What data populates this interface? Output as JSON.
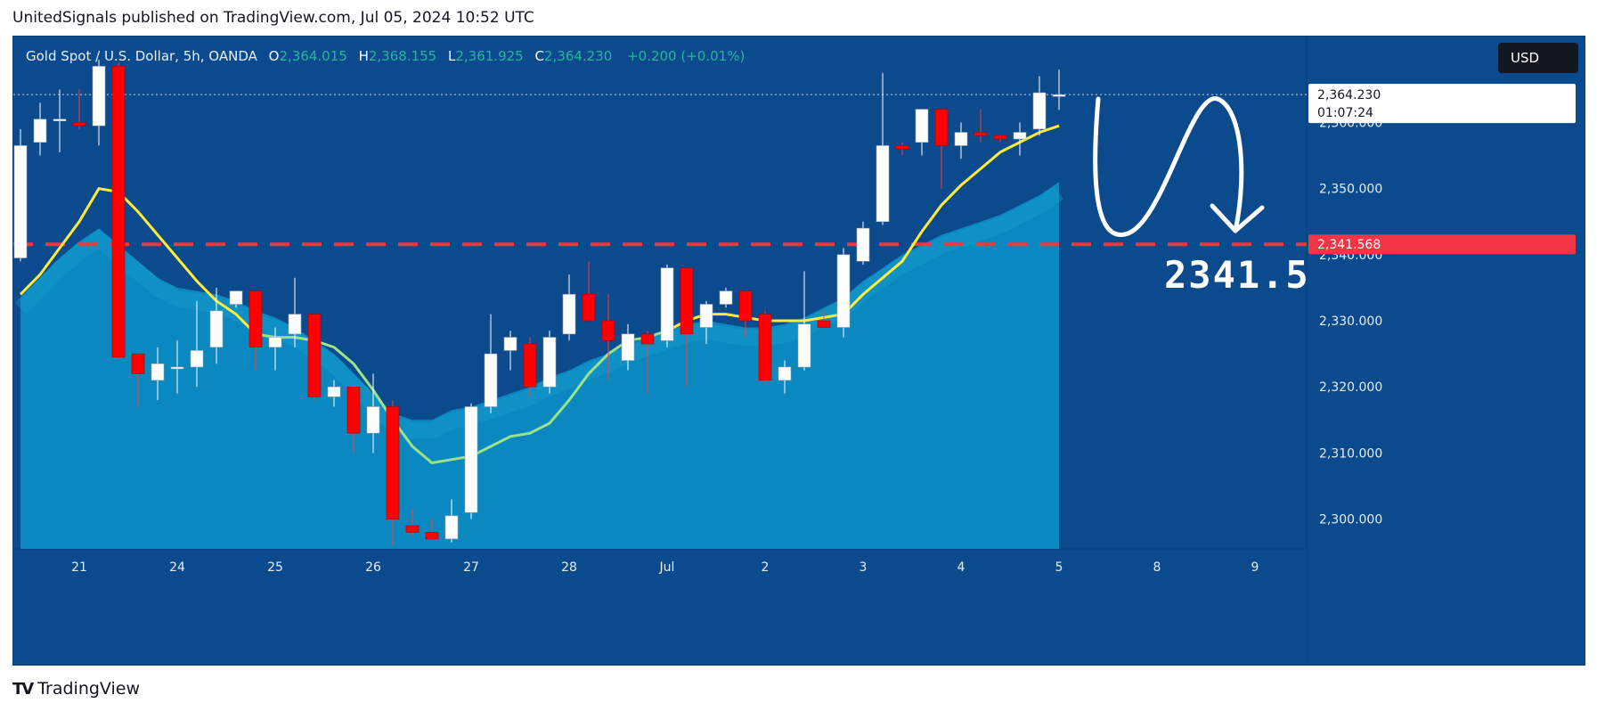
{
  "header": {
    "publisher_line": "UnitedSignals published on TradingView.com, Jul 05, 2024 10:52 UTC"
  },
  "legend": {
    "symbol": "Gold Spot / U.S. Dollar, 5h, OANDA",
    "o_label": "O",
    "o_value": "2,364.015",
    "h_label": "H",
    "h_value": "2,368.155",
    "l_label": "L",
    "l_value": "2,361.925",
    "c_label": "C",
    "c_value": "2,364.230",
    "change": "+0.200 (+0.01%)"
  },
  "currency_button": "USD",
  "price_badge": {
    "price": "2,364.230",
    "countdown": "01:07:24"
  },
  "level_badge": "2,341.568",
  "target_annotation": "2341.5",
  "footer": {
    "brand": "TradingView"
  },
  "colors": {
    "background": "#0b4a8c",
    "up": "#ffffff",
    "down": "#ff0000",
    "ma_fast": "#ffeb3b",
    "ma_slow": "#9be38b",
    "area": "#0a8fc4",
    "level_line": "#f23645"
  },
  "chart_data": {
    "type": "candlestick",
    "instrument": "Gold Spot / U.S. Dollar",
    "timeframe": "5h",
    "y_ticks": [
      2300,
      2310,
      2320,
      2330,
      2340,
      2350,
      2360
    ],
    "y_tick_labels": [
      "2,300.000",
      "2,310.000",
      "2,320.000",
      "2,330.000",
      "2,340.000",
      "2,350.000",
      "2,360.000"
    ],
    "ylim": [
      2295.5,
      2373
    ],
    "x_labels": [
      {
        "label": "21",
        "index": 3
      },
      {
        "label": "24",
        "index": 8
      },
      {
        "label": "25",
        "index": 13
      },
      {
        "label": "26",
        "index": 18
      },
      {
        "label": "27",
        "index": 23
      },
      {
        "label": "28",
        "index": 28
      },
      {
        "label": "Jul",
        "index": 33
      },
      {
        "label": "2",
        "index": 38
      },
      {
        "label": "3",
        "index": 43
      },
      {
        "label": "4",
        "index": 48
      },
      {
        "label": "5",
        "index": 53
      },
      {
        "label": "8",
        "index": 58
      },
      {
        "label": "9",
        "index": 63
      }
    ],
    "candles": [
      {
        "o": 2339.5,
        "h": 2359,
        "l": 2339,
        "c": 2356.5
      },
      {
        "o": 2357,
        "h": 2363,
        "l": 2355,
        "c": 2360.5
      },
      {
        "o": 2360.5,
        "h": 2365,
        "l": 2355.5,
        "c": 2360.5
      },
      {
        "o": 2360,
        "h": 2365,
        "l": 2359,
        "c": 2359.5
      },
      {
        "o": 2359.5,
        "h": 2369.5,
        "l": 2356.5,
        "c": 2368.5
      },
      {
        "o": 2368.5,
        "h": 2369,
        "l": 2324,
        "c": 2324.5
      },
      {
        "o": 2325,
        "h": 2325,
        "l": 2317,
        "c": 2322
      },
      {
        "o": 2321,
        "h": 2326,
        "l": 2318,
        "c": 2323.5
      },
      {
        "o": 2323,
        "h": 2327,
        "l": 2319,
        "c": 2323
      },
      {
        "o": 2323,
        "h": 2333,
        "l": 2320,
        "c": 2325.5
      },
      {
        "o": 2326,
        "h": 2335,
        "l": 2323.5,
        "c": 2331.5
      },
      {
        "o": 2332.5,
        "h": 2334.5,
        "l": 2332,
        "c": 2334.5
      },
      {
        "o": 2334.5,
        "h": 2334.5,
        "l": 2322.5,
        "c": 2326
      },
      {
        "o": 2326,
        "h": 2329,
        "l": 2322.5,
        "c": 2327.5
      },
      {
        "o": 2328,
        "h": 2336.5,
        "l": 2326,
        "c": 2331
      },
      {
        "o": 2331,
        "h": 2331,
        "l": 2318,
        "c": 2318.5
      },
      {
        "o": 2318.5,
        "h": 2321,
        "l": 2317,
        "c": 2320
      },
      {
        "o": 2320,
        "h": 2320,
        "l": 2310,
        "c": 2313
      },
      {
        "o": 2313,
        "h": 2322,
        "l": 2310,
        "c": 2317
      },
      {
        "o": 2317,
        "h": 2318,
        "l": 2296,
        "c": 2300
      },
      {
        "o": 2299,
        "h": 2301.5,
        "l": 2297.5,
        "c": 2298
      },
      {
        "o": 2298,
        "h": 2300,
        "l": 2297.5,
        "c": 2297
      },
      {
        "o": 2297,
        "h": 2303,
        "l": 2296.5,
        "c": 2300.5
      },
      {
        "o": 2301,
        "h": 2317.5,
        "l": 2300,
        "c": 2317
      },
      {
        "o": 2317,
        "h": 2331,
        "l": 2316,
        "c": 2325
      },
      {
        "o": 2325.5,
        "h": 2328.5,
        "l": 2322.5,
        "c": 2327.5
      },
      {
        "o": 2326.5,
        "h": 2327.5,
        "l": 2318.5,
        "c": 2320
      },
      {
        "o": 2320,
        "h": 2328.5,
        "l": 2319,
        "c": 2327.5
      },
      {
        "o": 2328,
        "h": 2337,
        "l": 2327,
        "c": 2334
      },
      {
        "o": 2334,
        "h": 2339,
        "l": 2330,
        "c": 2330
      },
      {
        "o": 2330,
        "h": 2334,
        "l": 2321,
        "c": 2327
      },
      {
        "o": 2324,
        "h": 2329.5,
        "l": 2322.5,
        "c": 2328
      },
      {
        "o": 2328,
        "h": 2328.5,
        "l": 2319,
        "c": 2326.5
      },
      {
        "o": 2327,
        "h": 2338.5,
        "l": 2326,
        "c": 2338
      },
      {
        "o": 2338,
        "h": 2338,
        "l": 2320,
        "c": 2328
      },
      {
        "o": 2329,
        "h": 2333,
        "l": 2326.5,
        "c": 2332.5
      },
      {
        "o": 2332.5,
        "h": 2335,
        "l": 2332,
        "c": 2334.5
      },
      {
        "o": 2334.5,
        "h": 2334.5,
        "l": 2327.5,
        "c": 2330
      },
      {
        "o": 2331,
        "h": 2331.5,
        "l": 2320.5,
        "c": 2321
      },
      {
        "o": 2321,
        "h": 2324,
        "l": 2319,
        "c": 2323
      },
      {
        "o": 2323,
        "h": 2337.5,
        "l": 2322.5,
        "c": 2329.5
      },
      {
        "o": 2330,
        "h": 2331.5,
        "l": 2329,
        "c": 2329
      },
      {
        "o": 2329,
        "h": 2341,
        "l": 2327.5,
        "c": 2340
      },
      {
        "o": 2339,
        "h": 2345,
        "l": 2338.5,
        "c": 2344
      },
      {
        "o": 2345,
        "h": 2367.5,
        "l": 2344.5,
        "c": 2356.5
      },
      {
        "o": 2356.5,
        "h": 2357,
        "l": 2355,
        "c": 2356
      },
      {
        "o": 2357,
        "h": 2362,
        "l": 2355,
        "c": 2362
      },
      {
        "o": 2362,
        "h": 2362,
        "l": 2350,
        "c": 2356.5
      },
      {
        "o": 2356.5,
        "h": 2360,
        "l": 2354.5,
        "c": 2358.5
      },
      {
        "o": 2358.5,
        "h": 2362,
        "l": 2357,
        "c": 2358
      },
      {
        "o": 2358,
        "h": 2358,
        "l": 2357,
        "c": 2357.5
      },
      {
        "o": 2357.5,
        "h": 2360,
        "l": 2355,
        "c": 2358.5
      },
      {
        "o": 2359,
        "h": 2367,
        "l": 2358,
        "c": 2364.5
      },
      {
        "o": 2364,
        "h": 2368,
        "l": 2361.9,
        "c": 2364.2
      }
    ],
    "ma_fast": [
      2334,
      2337,
      2341,
      2345,
      2350,
      2349.5,
      2346.5,
      2343,
      2339.5,
      2336,
      2333,
      2331,
      2328,
      2327.5,
      2327.5,
      2327,
      2326,
      2323.5,
      2319.5,
      2315,
      2311,
      2308.5,
      2309,
      2309.5,
      2311,
      2312.5,
      2313,
      2314.5,
      2318,
      2322,
      2325,
      2327,
      2327.5,
      2328.5,
      2330,
      2331,
      2331,
      2330.5,
      2330,
      2330,
      2330,
      2330.5,
      2331,
      2334,
      2336.5,
      2339,
      2343.5,
      2347.5,
      2350.5,
      2353,
      2355.5,
      2357,
      2358.5,
      2359.5
    ],
    "area_upper": [
      2333.5,
      2336.5,
      2339.5,
      2342,
      2344,
      2341.5,
      2339,
      2336.5,
      2335,
      2334.5,
      2334,
      2333,
      2331.5,
      2330.5,
      2329,
      2327,
      2325,
      2322,
      2319,
      2316,
      2315,
      2315,
      2316.5,
      2317,
      2318,
      2319,
      2320,
      2321.5,
      2322.5,
      2324,
      2325,
      2326.5,
      2327.5,
      2328.5,
      2329.5,
      2330,
      2329.5,
      2329,
      2329,
      2329.5,
      2330.5,
      2332,
      2333.5,
      2336,
      2338,
      2340,
      2341.5,
      2343,
      2344,
      2345,
      2346,
      2347.5,
      2349,
      2351
    ]
  }
}
